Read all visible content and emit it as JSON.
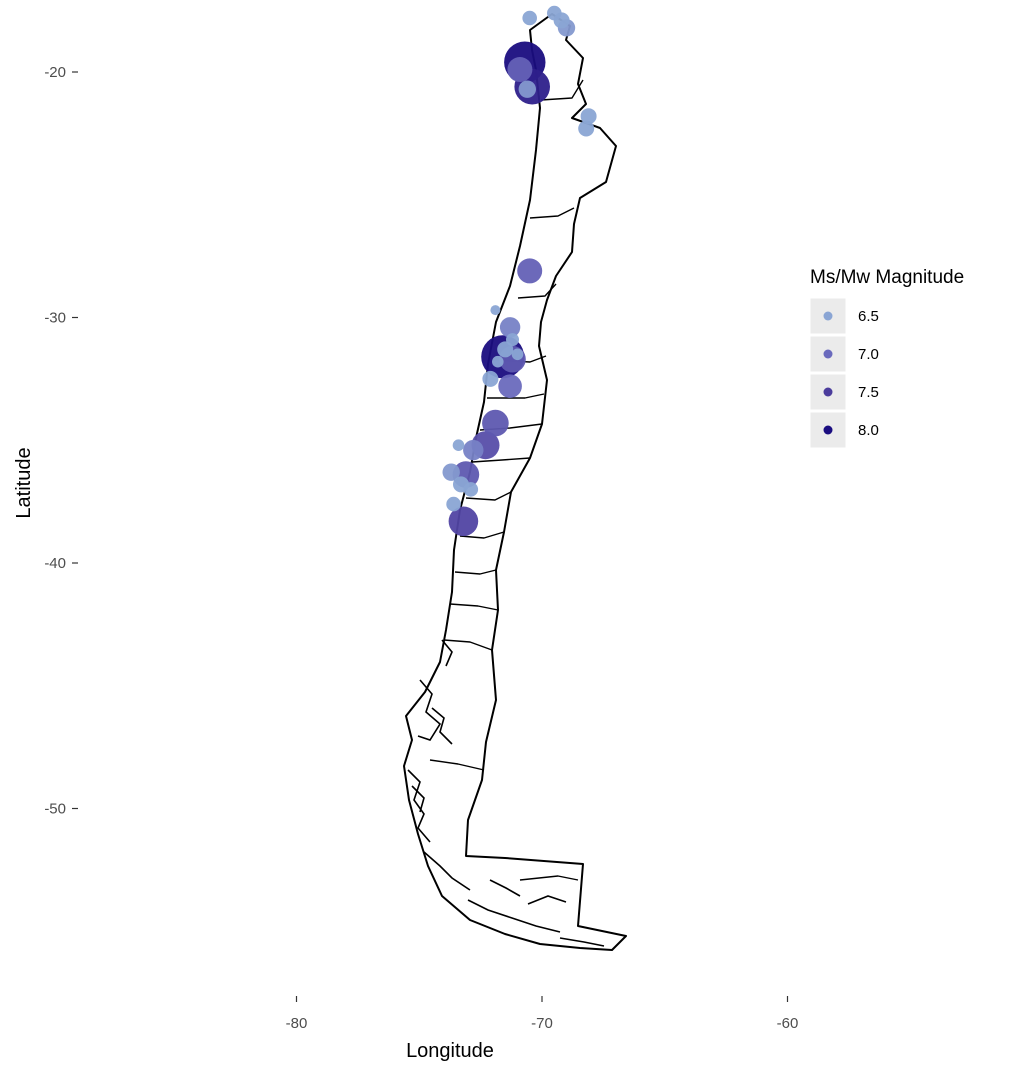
{
  "chart_data": {
    "type": "scatter",
    "xlabel": "Longitude",
    "ylabel": "Latitude",
    "xlim": [
      -89,
      -59
    ],
    "ylim": [
      -57.5,
      -17
    ],
    "x_ticks": [
      {
        "value": -80,
        "label": "-80"
      },
      {
        "value": -70,
        "label": "-70"
      },
      {
        "value": -60,
        "label": "-60"
      }
    ],
    "y_ticks": [
      {
        "value": -20,
        "label": "-20"
      },
      {
        "value": -30,
        "label": "-30"
      },
      {
        "value": -40,
        "label": "-40"
      },
      {
        "value": -50,
        "label": "-50"
      }
    ],
    "grid": false,
    "base_map": "Chile regional boundaries",
    "legend": {
      "title": "Ms/Mw Magnitude",
      "position": "right",
      "entries": [
        {
          "value": 6.5,
          "label": "6.5",
          "color": "#8aa5d4"
        },
        {
          "value": 7.0,
          "label": "7.0",
          "color": "#6a6abd"
        },
        {
          "value": 7.5,
          "label": "7.5",
          "color": "#4b3c9c"
        },
        {
          "value": 8.0,
          "label": "8.0",
          "color": "#1a0d80"
        }
      ]
    },
    "series": [
      {
        "points": [
          {
            "lon": -70.5,
            "lat": -17.8,
            "mag": 6.4
          },
          {
            "lon": -69.5,
            "lat": -17.6,
            "mag": 6.4
          },
          {
            "lon": -69.2,
            "lat": -17.9,
            "mag": 6.5
          },
          {
            "lon": -69.0,
            "lat": -18.2,
            "mag": 6.6
          },
          {
            "lon": -70.7,
            "lat": -19.6,
            "mag": 8.2
          },
          {
            "lon": -70.9,
            "lat": -19.9,
            "mag": 7.1
          },
          {
            "lon": -70.4,
            "lat": -20.6,
            "mag": 7.8
          },
          {
            "lon": -70.6,
            "lat": -20.7,
            "mag": 6.6
          },
          {
            "lon": -68.1,
            "lat": -21.8,
            "mag": 6.5
          },
          {
            "lon": -68.2,
            "lat": -22.3,
            "mag": 6.5
          },
          {
            "lon": -70.5,
            "lat": -28.1,
            "mag": 7.1
          },
          {
            "lon": -71.9,
            "lat": -29.7,
            "mag": 6.1
          },
          {
            "lon": -71.3,
            "lat": -30.4,
            "mag": 6.8
          },
          {
            "lon": -71.2,
            "lat": -30.9,
            "mag": 6.3
          },
          {
            "lon": -71.5,
            "lat": -31.3,
            "mag": 6.5
          },
          {
            "lon": -71.6,
            "lat": -31.6,
            "mag": 8.3
          },
          {
            "lon": -71.2,
            "lat": -31.7,
            "mag": 7.2
          },
          {
            "lon": -71.0,
            "lat": -31.5,
            "mag": 6.2
          },
          {
            "lon": -71.8,
            "lat": -31.8,
            "mag": 6.2
          },
          {
            "lon": -72.1,
            "lat": -32.5,
            "mag": 6.5
          },
          {
            "lon": -71.3,
            "lat": -32.8,
            "mag": 7.0
          },
          {
            "lon": -71.9,
            "lat": -34.3,
            "mag": 7.2
          },
          {
            "lon": -72.3,
            "lat": -35.2,
            "mag": 7.3
          },
          {
            "lon": -72.8,
            "lat": -35.4,
            "mag": 6.8
          },
          {
            "lon": -73.4,
            "lat": -35.2,
            "mag": 6.2
          },
          {
            "lon": -73.7,
            "lat": -36.3,
            "mag": 6.6
          },
          {
            "lon": -73.1,
            "lat": -36.4,
            "mag": 7.2
          },
          {
            "lon": -73.3,
            "lat": -36.8,
            "mag": 6.5
          },
          {
            "lon": -72.9,
            "lat": -37.0,
            "mag": 6.4
          },
          {
            "lon": -73.6,
            "lat": -37.6,
            "mag": 6.4
          },
          {
            "lon": -73.2,
            "lat": -38.3,
            "mag": 7.4
          }
        ]
      }
    ]
  }
}
